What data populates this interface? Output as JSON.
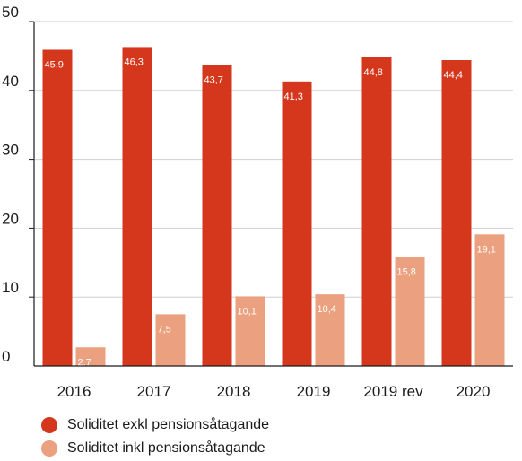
{
  "chart_data": {
    "type": "bar",
    "categories": [
      "2016",
      "2017",
      "2018",
      "2019",
      "2019 rev",
      "2020"
    ],
    "series": [
      {
        "name": "Soliditet exkl pensionsåtagande",
        "values": [
          45.9,
          46.3,
          43.7,
          41.3,
          44.8,
          44.4
        ],
        "labels": [
          "45,9",
          "46,3",
          "43,7",
          "41,3",
          "44,8",
          "44,4"
        ],
        "color": "#d4371c"
      },
      {
        "name": "Soliditet inkl pensionsåtagande",
        "values": [
          2.7,
          7.5,
          10.1,
          10.4,
          15.8,
          19.1
        ],
        "labels": [
          "2,7",
          "7,5",
          "10,1",
          "10,4",
          "15,8",
          "19,1"
        ],
        "color": "#eba07f"
      }
    ],
    "yticks": [
      0,
      10,
      20,
      30,
      40,
      50
    ],
    "ylim": [
      0,
      50
    ],
    "grid": true,
    "legend": "bottom-left"
  }
}
